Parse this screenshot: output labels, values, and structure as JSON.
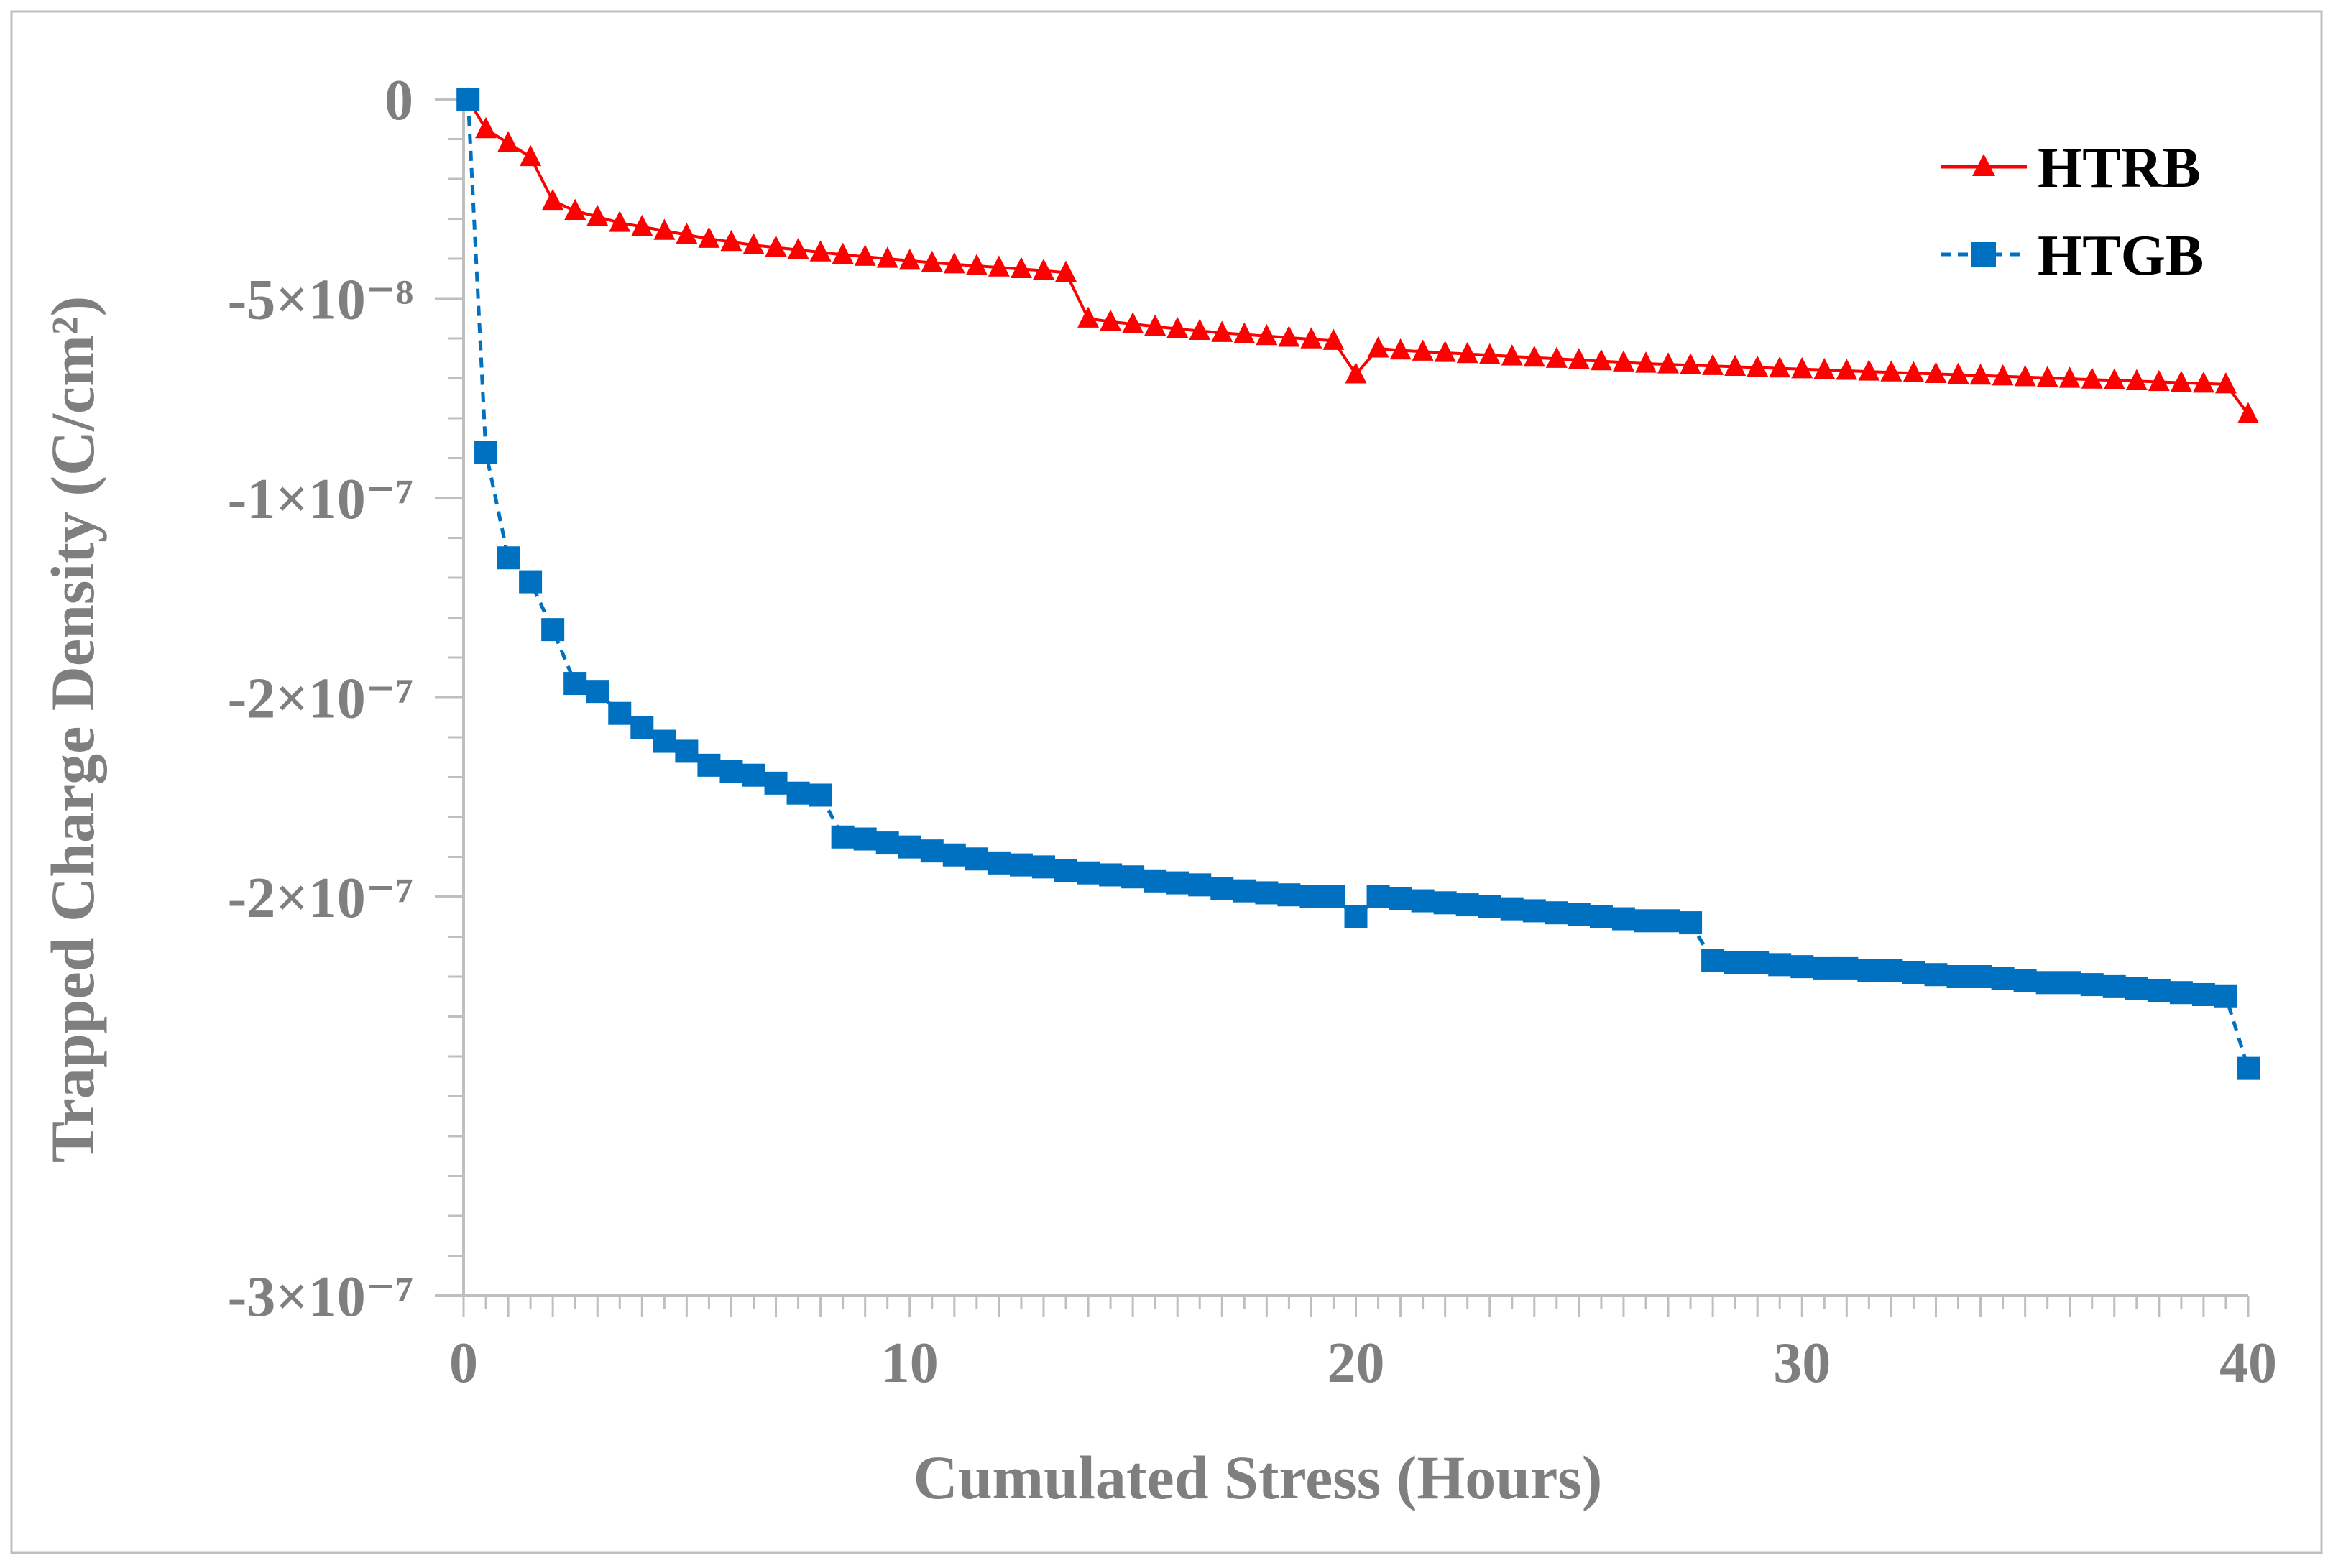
{
  "chart_data": {
    "type": "line",
    "title": "",
    "xlabel": "Cumulated Stress (Hours)",
    "ylabel": "Trapped Charge Density (C/cm²)",
    "xlim": [
      0,
      40
    ],
    "ylim": [
      -3e-07,
      0
    ],
    "x_ticks": [
      {
        "value": 0,
        "label": "0"
      },
      {
        "value": 10,
        "label": "10"
      },
      {
        "value": 20,
        "label": "20"
      },
      {
        "value": 30,
        "label": "30"
      },
      {
        "value": 40,
        "label": "40"
      }
    ],
    "x_minor_step": 0.5,
    "y_ticks": [
      {
        "value": 0,
        "label": "0"
      },
      {
        "value": -5e-08,
        "label": "-5×10⁻⁸"
      },
      {
        "value": -1e-07,
        "label": "-1×10⁻⁷"
      },
      {
        "value": -1.5e-07,
        "label": "-2×10⁻⁷"
      },
      {
        "value": -2e-07,
        "label": "-2×10⁻⁷"
      },
      {
        "value": -3e-07,
        "label": "-3×10⁻⁷"
      }
    ],
    "y_minor_step": 1e-08,
    "legend_position": "top-right",
    "series": [
      {
        "name": "HTRB",
        "color": "#ff0000",
        "marker": "triangle",
        "line_style": "solid",
        "points": [
          [
            0.1,
            0
          ],
          [
            0.5,
            -7.5e-09
          ],
          [
            1.0,
            -1.1e-08
          ],
          [
            1.5,
            -1.45e-08
          ],
          [
            2.0,
            -2.55e-08
          ],
          [
            2.5,
            -2.8e-08
          ],
          [
            3.0,
            -2.95e-08
          ],
          [
            3.5,
            -3.1e-08
          ],
          [
            4.0,
            -3.2e-08
          ],
          [
            4.5,
            -3.3e-08
          ],
          [
            5.0,
            -3.4e-08
          ],
          [
            5.5,
            -3.5e-08
          ],
          [
            6.0,
            -3.58e-08
          ],
          [
            6.5,
            -3.66e-08
          ],
          [
            7.0,
            -3.72e-08
          ],
          [
            7.5,
            -3.78e-08
          ],
          [
            8.0,
            -3.84e-08
          ],
          [
            8.5,
            -3.9e-08
          ],
          [
            9.0,
            -3.95e-08
          ],
          [
            9.5,
            -4e-08
          ],
          [
            10.0,
            -4.05e-08
          ],
          [
            10.5,
            -4.1e-08
          ],
          [
            11.0,
            -4.14e-08
          ],
          [
            11.5,
            -4.18e-08
          ],
          [
            12.0,
            -4.22e-08
          ],
          [
            12.5,
            -4.26e-08
          ],
          [
            13.0,
            -4.3e-08
          ],
          [
            13.5,
            -4.35e-08
          ],
          [
            14.0,
            -5.5e-08
          ],
          [
            14.5,
            -5.58e-08
          ],
          [
            15.0,
            -5.64e-08
          ],
          [
            15.5,
            -5.7e-08
          ],
          [
            16.0,
            -5.76e-08
          ],
          [
            16.5,
            -5.81e-08
          ],
          [
            17.0,
            -5.86e-08
          ],
          [
            17.5,
            -5.9e-08
          ],
          [
            18.0,
            -5.94e-08
          ],
          [
            18.5,
            -5.98e-08
          ],
          [
            19.0,
            -6.02e-08
          ],
          [
            19.5,
            -6.06e-08
          ],
          [
            20.0,
            -6.9e-08
          ],
          [
            20.5,
            -6.25e-08
          ],
          [
            21.0,
            -6.3e-08
          ],
          [
            21.5,
            -6.33e-08
          ],
          [
            22.0,
            -6.36e-08
          ],
          [
            22.5,
            -6.39e-08
          ],
          [
            23.0,
            -6.42e-08
          ],
          [
            23.5,
            -6.45e-08
          ],
          [
            24.0,
            -6.48e-08
          ],
          [
            24.5,
            -6.51e-08
          ],
          [
            25.0,
            -6.54e-08
          ],
          [
            25.5,
            -6.57e-08
          ],
          [
            26.0,
            -6.6e-08
          ],
          [
            26.5,
            -6.63e-08
          ],
          [
            27.0,
            -6.65e-08
          ],
          [
            27.5,
            -6.67e-08
          ],
          [
            28.0,
            -6.69e-08
          ],
          [
            28.5,
            -6.71e-08
          ],
          [
            29.0,
            -6.73e-08
          ],
          [
            29.5,
            -6.75e-08
          ],
          [
            30.0,
            -6.77e-08
          ],
          [
            30.5,
            -6.79e-08
          ],
          [
            31.0,
            -6.81e-08
          ],
          [
            31.5,
            -6.83e-08
          ],
          [
            32.0,
            -6.85e-08
          ],
          [
            32.5,
            -6.87e-08
          ],
          [
            33.0,
            -6.89e-08
          ],
          [
            33.5,
            -6.91e-08
          ],
          [
            34.0,
            -6.93e-08
          ],
          [
            34.5,
            -6.95e-08
          ],
          [
            35.0,
            -6.97e-08
          ],
          [
            35.5,
            -6.99e-08
          ],
          [
            36.0,
            -7.01e-08
          ],
          [
            36.5,
            -7.03e-08
          ],
          [
            37.0,
            -7.05e-08
          ],
          [
            37.5,
            -7.07e-08
          ],
          [
            38.0,
            -7.09e-08
          ],
          [
            38.5,
            -7.11e-08
          ],
          [
            39.0,
            -7.13e-08
          ],
          [
            39.5,
            -7.15e-08
          ],
          [
            40.0,
            -7.9e-08
          ]
        ]
      },
      {
        "name": "HTGB",
        "color": "#0070c0",
        "marker": "square",
        "line_style": "dashed",
        "points": [
          [
            0.1,
            0
          ],
          [
            0.5,
            -8.85e-08
          ],
          [
            1.0,
            -1.15e-07
          ],
          [
            1.5,
            -1.21e-07
          ],
          [
            2.0,
            -1.33e-07
          ],
          [
            2.5,
            -1.465e-07
          ],
          [
            3.0,
            -1.485e-07
          ],
          [
            3.5,
            -1.54e-07
          ],
          [
            4.0,
            -1.575e-07
          ],
          [
            4.5,
            -1.61e-07
          ],
          [
            5.0,
            -1.635e-07
          ],
          [
            5.5,
            -1.67e-07
          ],
          [
            6.0,
            -1.685e-07
          ],
          [
            6.5,
            -1.695e-07
          ],
          [
            7.0,
            -1.715e-07
          ],
          [
            7.5,
            -1.74e-07
          ],
          [
            8.0,
            -1.745e-07
          ],
          [
            8.5,
            -1.85e-07
          ],
          [
            9.0,
            -1.855e-07
          ],
          [
            9.5,
            -1.865e-07
          ],
          [
            10.0,
            -1.875e-07
          ],
          [
            10.5,
            -1.885e-07
          ],
          [
            11.0,
            -1.895e-07
          ],
          [
            11.5,
            -1.905e-07
          ],
          [
            12.0,
            -1.915e-07
          ],
          [
            12.5,
            -1.92e-07
          ],
          [
            13.0,
            -1.925e-07
          ],
          [
            13.5,
            -1.935e-07
          ],
          [
            14.0,
            -1.94e-07
          ],
          [
            14.5,
            -1.945e-07
          ],
          [
            15.0,
            -1.95e-07
          ],
          [
            15.5,
            -1.96e-07
          ],
          [
            16.0,
            -1.965e-07
          ],
          [
            16.5,
            -1.97e-07
          ],
          [
            17.0,
            -1.98e-07
          ],
          [
            17.5,
            -1.985e-07
          ],
          [
            18.0,
            -1.99e-07
          ],
          [
            18.5,
            -1.995e-07
          ],
          [
            19.0,
            -2e-07
          ],
          [
            19.5,
            -2e-07
          ],
          [
            20.0,
            -2.05e-07
          ],
          [
            20.5,
            -2e-07
          ],
          [
            21.0,
            -2.005e-07
          ],
          [
            21.5,
            -2.01e-07
          ],
          [
            22.0,
            -2.015e-07
          ],
          [
            22.5,
            -2.02e-07
          ],
          [
            23.0,
            -2.025e-07
          ],
          [
            23.5,
            -2.03e-07
          ],
          [
            24.0,
            -2.035e-07
          ],
          [
            24.5,
            -2.04e-07
          ],
          [
            25.0,
            -2.045e-07
          ],
          [
            25.5,
            -2.05e-07
          ],
          [
            26.0,
            -2.055e-07
          ],
          [
            26.5,
            -2.06e-07
          ],
          [
            27.0,
            -2.06e-07
          ],
          [
            27.5,
            -2.065e-07
          ],
          [
            28.0,
            -2.16e-07
          ],
          [
            28.5,
            -2.165e-07
          ],
          [
            29.0,
            -2.165e-07
          ],
          [
            29.5,
            -2.17e-07
          ],
          [
            30.0,
            -2.175e-07
          ],
          [
            30.5,
            -2.18e-07
          ],
          [
            31.0,
            -2.18e-07
          ],
          [
            31.5,
            -2.185e-07
          ],
          [
            32.0,
            -2.185e-07
          ],
          [
            32.5,
            -2.19e-07
          ],
          [
            33.0,
            -2.195e-07
          ],
          [
            33.5,
            -2.2e-07
          ],
          [
            34.0,
            -2.2e-07
          ],
          [
            34.5,
            -2.205e-07
          ],
          [
            35.0,
            -2.21e-07
          ],
          [
            35.5,
            -2.215e-07
          ],
          [
            36.0,
            -2.215e-07
          ],
          [
            36.5,
            -2.22e-07
          ],
          [
            37.0,
            -2.225e-07
          ],
          [
            37.5,
            -2.23e-07
          ],
          [
            38.0,
            -2.235e-07
          ],
          [
            38.5,
            -2.24e-07
          ],
          [
            39.0,
            -2.245e-07
          ],
          [
            39.5,
            -2.25e-07
          ],
          [
            40.0,
            -2.43e-07
          ]
        ]
      }
    ]
  }
}
